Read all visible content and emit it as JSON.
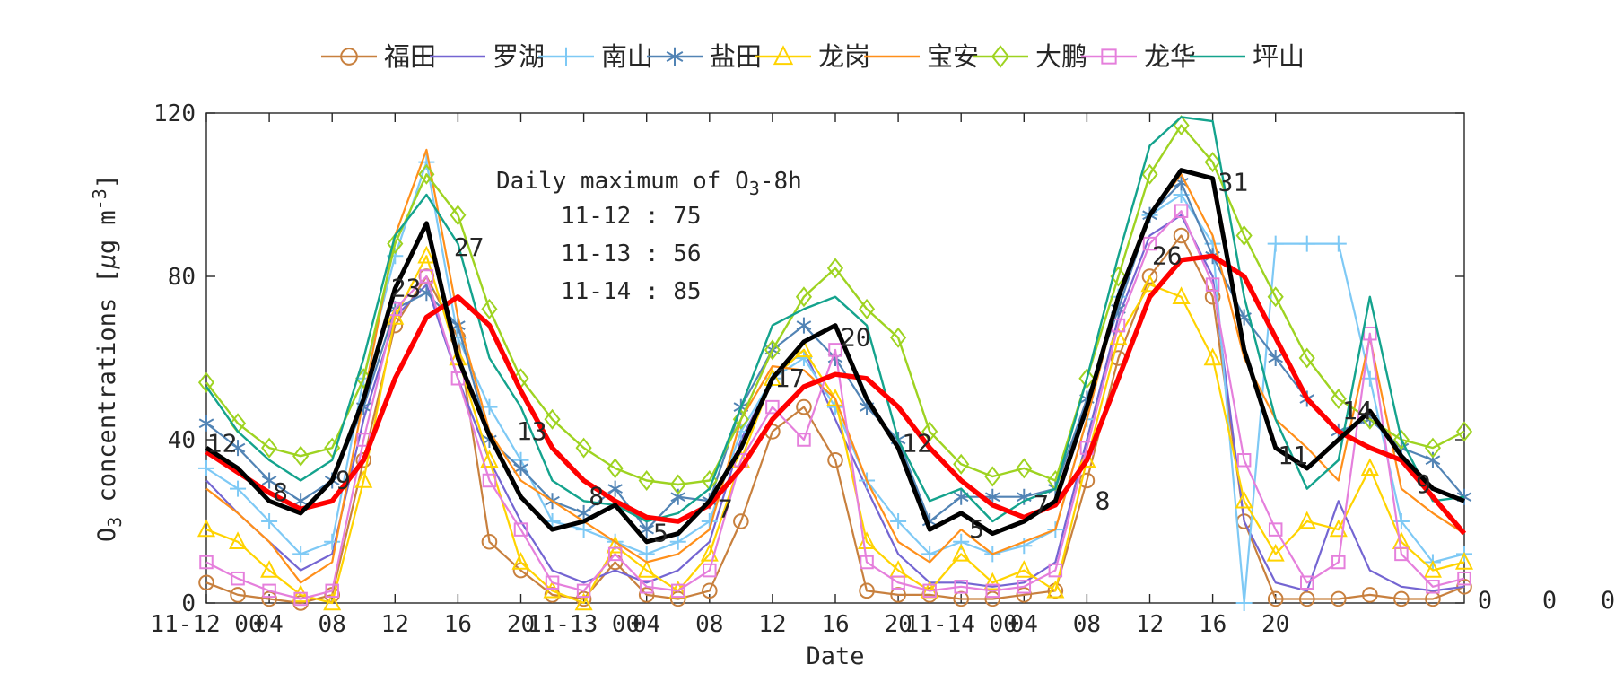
{
  "figure": {
    "annotation": {
      "title_pre": "Daily maximum of O",
      "title_sub": "3",
      "title_post": "-8h",
      "rows": [
        "11-12 : 75",
        "11-13 : 56",
        "11-14 : 85"
      ]
    },
    "stray_zeros": [
      "0",
      "0",
      "0"
    ]
  },
  "chart_data": {
    "type": "line",
    "title": "",
    "xlabel": "Date",
    "ylabel_parts": {
      "pre": "O",
      "sub": "3",
      "mid": " concentrations [",
      "mu": "μ",
      "mid2": "g m",
      "sup": "-3",
      "post": "]"
    },
    "ylim": [
      0,
      120
    ],
    "y_ticks": [
      0,
      40,
      80,
      120
    ],
    "x_unit": "hours from 11-12 00:00",
    "x_step_hours": 2,
    "xlim_hours": [
      0,
      80
    ],
    "x_ticks": [
      {
        "hour": 0,
        "label": "11-12 00"
      },
      {
        "hour": 4,
        "label": "04"
      },
      {
        "hour": 8,
        "label": "08"
      },
      {
        "hour": 12,
        "label": "12"
      },
      {
        "hour": 16,
        "label": "16"
      },
      {
        "hour": 20,
        "label": "20"
      },
      {
        "hour": 24,
        "label": "11-13 00"
      },
      {
        "hour": 28,
        "label": "04"
      },
      {
        "hour": 32,
        "label": "08"
      },
      {
        "hour": 36,
        "label": "12"
      },
      {
        "hour": 40,
        "label": "16"
      },
      {
        "hour": 44,
        "label": "20"
      },
      {
        "hour": 48,
        "label": "11-14 00"
      },
      {
        "hour": 52,
        "label": "04"
      },
      {
        "hour": 56,
        "label": "08"
      },
      {
        "hour": 60,
        "label": "12"
      },
      {
        "hour": 64,
        "label": "16"
      },
      {
        "hour": 68,
        "label": "20"
      }
    ],
    "series": [
      {
        "name": "福田",
        "id": "futian",
        "color": "#C8803E",
        "marker": "circle",
        "width": 2.2,
        "values": [
          5,
          2,
          1,
          0,
          2,
          35,
          68,
          80,
          65,
          15,
          8,
          2,
          1,
          10,
          2,
          1,
          3,
          20,
          42,
          48,
          35,
          3,
          2,
          2,
          1,
          1,
          2,
          3,
          30,
          60,
          80,
          90,
          75,
          20,
          1,
          1,
          1,
          2,
          1,
          1,
          4
        ]
      },
      {
        "name": "罗湖",
        "id": "luohu",
        "color": "#7465D2",
        "marker": "none",
        "width": 2.2,
        "values": [
          30,
          22,
          15,
          8,
          12,
          45,
          70,
          78,
          55,
          35,
          20,
          8,
          5,
          8,
          5,
          8,
          15,
          40,
          55,
          62,
          45,
          28,
          12,
          5,
          5,
          4,
          5,
          10,
          40,
          70,
          90,
          95,
          80,
          20,
          5,
          3,
          25,
          8,
          4,
          3,
          4
        ]
      },
      {
        "name": "南山",
        "id": "nanshan",
        "color": "#7EC9F5",
        "marker": "plus",
        "width": 2.2,
        "values": [
          33,
          28,
          20,
          12,
          15,
          55,
          85,
          108,
          65,
          48,
          35,
          20,
          18,
          15,
          12,
          15,
          20,
          42,
          55,
          60,
          48,
          30,
          20,
          12,
          15,
          12,
          14,
          18,
          45,
          75,
          95,
          100,
          88,
          0,
          88,
          88,
          88,
          55,
          20,
          10,
          12
        ]
      },
      {
        "name": "盐田",
        "id": "yantian",
        "color": "#5284B5",
        "marker": "asterisk",
        "width": 2.2,
        "values": [
          44,
          38,
          30,
          25,
          30,
          48,
          72,
          76,
          68,
          40,
          33,
          25,
          22,
          28,
          18,
          26,
          25,
          48,
          62,
          68,
          60,
          48,
          40,
          20,
          26,
          26,
          26,
          28,
          50,
          72,
          95,
          103,
          85,
          70,
          60,
          50,
          42,
          45,
          38,
          35,
          26
        ]
      },
      {
        "name": "龙岗",
        "id": "longgang",
        "color": "#FFD300",
        "marker": "triangle",
        "width": 2.2,
        "values": [
          18,
          15,
          8,
          2,
          0,
          30,
          70,
          85,
          60,
          35,
          10,
          3,
          0,
          14,
          8,
          3,
          12,
          35,
          55,
          62,
          50,
          15,
          8,
          3,
          12,
          5,
          8,
          3,
          35,
          65,
          78,
          75,
          60,
          25,
          12,
          20,
          18,
          33,
          15,
          8,
          10
        ]
      },
      {
        "name": "宝安",
        "id": "baoan",
        "color": "#FF8F1A",
        "marker": "none",
        "width": 2.2,
        "values": [
          28,
          22,
          15,
          5,
          10,
          50,
          90,
          111,
          70,
          42,
          30,
          25,
          20,
          15,
          10,
          12,
          18,
          45,
          58,
          57,
          50,
          30,
          15,
          10,
          18,
          12,
          15,
          18,
          45,
          75,
          95,
          105,
          90,
          60,
          45,
          38,
          30,
          65,
          28,
          22,
          17
        ]
      },
      {
        "name": "大鹏",
        "id": "dapeng",
        "color": "#9ED321",
        "marker": "diamond",
        "width": 2.4,
        "values": [
          54,
          44,
          38,
          36,
          38,
          55,
          88,
          105,
          95,
          72,
          55,
          45,
          38,
          33,
          30,
          29,
          30,
          45,
          62,
          75,
          82,
          72,
          65,
          42,
          34,
          31,
          33,
          30,
          55,
          80,
          105,
          117,
          108,
          90,
          75,
          60,
          50,
          45,
          40,
          38,
          42
        ]
      },
      {
        "name": "龙华",
        "id": "longhua",
        "color": "#E57FDC",
        "marker": "square",
        "width": 2.2,
        "values": [
          10,
          6,
          3,
          1,
          3,
          40,
          72,
          80,
          55,
          30,
          18,
          5,
          3,
          12,
          4,
          3,
          8,
          35,
          48,
          40,
          62,
          10,
          5,
          3,
          4,
          3,
          4,
          8,
          38,
          68,
          88,
          96,
          78,
          35,
          18,
          5,
          10,
          66,
          12,
          4,
          6
        ]
      },
      {
        "name": "坪山",
        "id": "pingshan",
        "color": "#14A38D",
        "marker": "none",
        "width": 2.4,
        "values": [
          53,
          42,
          35,
          30,
          35,
          60,
          90,
          100,
          88,
          60,
          48,
          30,
          25,
          24,
          20,
          22,
          28,
          48,
          68,
          72,
          75,
          68,
          40,
          25,
          28,
          20,
          25,
          28,
          55,
          85,
          112,
          119,
          118,
          75,
          45,
          28,
          35,
          75,
          40,
          25,
          26
        ]
      }
    ],
    "overlay_series": [
      {
        "name": "district mean",
        "id": "mean",
        "color": "#000000",
        "marker": "none",
        "width": 5,
        "values": [
          38,
          33,
          25,
          22,
          30,
          50,
          77,
          93,
          60,
          41,
          26,
          18,
          20,
          24,
          15,
          17,
          25,
          38,
          55,
          64,
          68,
          50,
          38,
          18,
          22,
          17,
          20,
          25,
          48,
          75,
          95,
          106,
          104,
          62,
          38,
          33,
          40,
          47,
          36,
          28,
          25
        ]
      },
      {
        "name": "O3-8h running mean",
        "id": "o3-8h",
        "color": "#FF0000",
        "marker": "none",
        "width": 5.5,
        "values": [
          37,
          32,
          27,
          23,
          25,
          35,
          55,
          70,
          75,
          68,
          52,
          38,
          30,
          25,
          21,
          20,
          24,
          33,
          45,
          53,
          56,
          55,
          48,
          38,
          30,
          24,
          21,
          24,
          35,
          55,
          75,
          84,
          85,
          80,
          65,
          50,
          42,
          38,
          35,
          26,
          17
        ]
      }
    ],
    "point_labels": [
      {
        "hour": 1.0,
        "value": 39,
        "text": "12"
      },
      {
        "hour": 4.7,
        "value": 27,
        "text": "8"
      },
      {
        "hour": 8.7,
        "value": 30,
        "text": "9"
      },
      {
        "hour": 12.7,
        "value": 77,
        "text": "23"
      },
      {
        "hour": 16.7,
        "value": 87,
        "text": "27"
      },
      {
        "hour": 20.7,
        "value": 42,
        "text": "13"
      },
      {
        "hour": 24.8,
        "value": 26,
        "text": "8"
      },
      {
        "hour": 28.9,
        "value": 17,
        "text": "5"
      },
      {
        "hour": 33.0,
        "value": 23,
        "text": "7"
      },
      {
        "hour": 37.1,
        "value": 55,
        "text": "17"
      },
      {
        "hour": 41.3,
        "value": 65,
        "text": "20"
      },
      {
        "hour": 45.2,
        "value": 39,
        "text": "12"
      },
      {
        "hour": 49.0,
        "value": 18,
        "text": "5"
      },
      {
        "hour": 53.1,
        "value": 24,
        "text": "7"
      },
      {
        "hour": 57.0,
        "value": 25,
        "text": "8"
      },
      {
        "hour": 61.1,
        "value": 85,
        "text": "26"
      },
      {
        "hour": 65.3,
        "value": 103,
        "text": "31"
      },
      {
        "hour": 69.1,
        "value": 36,
        "text": "11"
      },
      {
        "hour": 73.2,
        "value": 47,
        "text": "14"
      },
      {
        "hour": 77.4,
        "value": 29,
        "text": "9"
      }
    ],
    "legend_position": "top-center",
    "grid": false
  },
  "legend": {
    "items": [
      "福田",
      "罗湖",
      "南山",
      "盐田",
      "龙岗",
      "宝安",
      "大鹏",
      "龙华",
      "坪山"
    ]
  }
}
